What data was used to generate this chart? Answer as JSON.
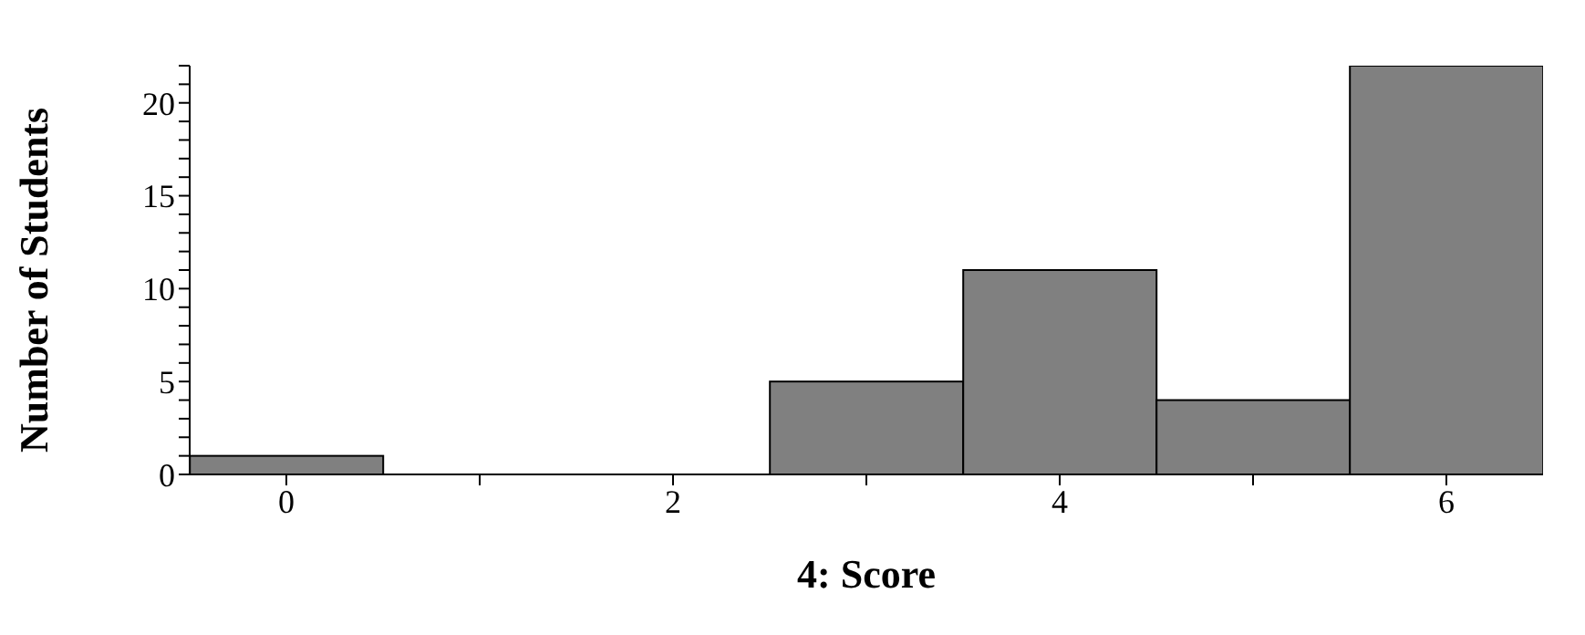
{
  "chart_data": {
    "type": "histogram",
    "xlabel": "4: Score",
    "ylabel": "Number of Students",
    "bins": [
      -0.5,
      0.5,
      1.5,
      2.5,
      3.5,
      4.5,
      5.5,
      6.5
    ],
    "values": [
      1,
      0,
      0,
      5,
      11,
      4,
      22
    ],
    "color": "#808080",
    "xlim": [
      -0.5,
      6.5
    ],
    "xticks": [
      0,
      {
        "value": 1,
        "label": null
      },
      2,
      {
        "value": 3,
        "label": null
      },
      4,
      {
        "value": 5,
        "label": null
      },
      6
    ],
    "ylim": [
      0,
      22
    ],
    "yticks": [
      0,
      {
        "value": 1,
        "label": null
      },
      {
        "value": 2,
        "label": null
      },
      {
        "value": 3,
        "label": null
      },
      {
        "value": 4,
        "label": null
      },
      5,
      {
        "value": 6,
        "label": null
      },
      {
        "value": 7,
        "label": null
      },
      {
        "value": 8,
        "label": null
      },
      {
        "value": 9,
        "label": null
      },
      10,
      {
        "value": 11,
        "label": null
      },
      {
        "value": 12,
        "label": null
      },
      {
        "value": 13,
        "label": null
      },
      {
        "value": 14,
        "label": null
      },
      15,
      {
        "value": 16,
        "label": null
      },
      {
        "value": 17,
        "label": null
      },
      {
        "value": 18,
        "label": null
      },
      {
        "value": 19,
        "label": null
      },
      20,
      {
        "value": 21,
        "label": null
      },
      {
        "value": 22,
        "label": null
      }
    ],
    "grid": false,
    "legend": false
  }
}
